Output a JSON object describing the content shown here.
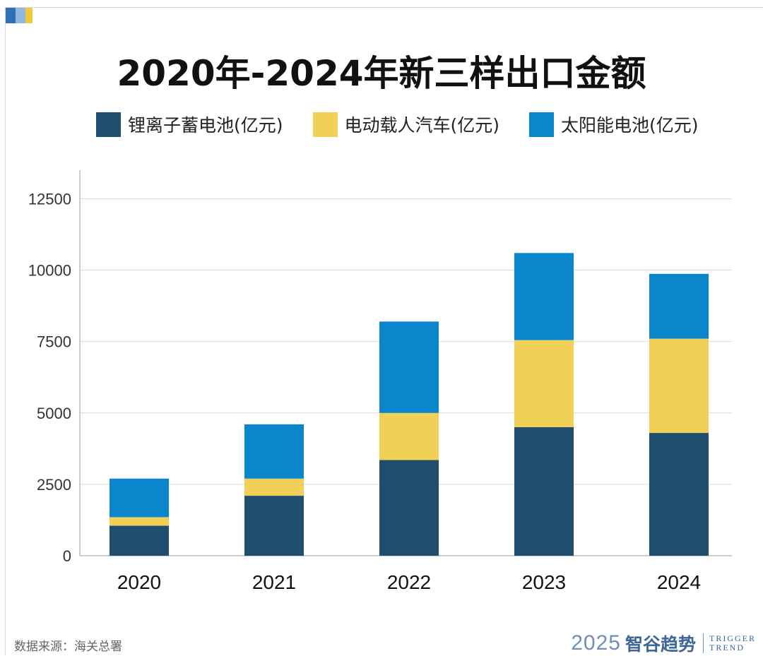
{
  "chart_data": {
    "type": "bar",
    "stacked": true,
    "title": "2020年-2024年新三样出口金额",
    "categories": [
      "2020",
      "2021",
      "2022",
      "2023",
      "2024"
    ],
    "series": [
      {
        "name": "锂离子蓄电池(亿元)",
        "color": "#1f4e6e",
        "values": [
          1050,
          2100,
          3350,
          4500,
          4300
        ]
      },
      {
        "name": "电动载人汽车(亿元)",
        "color": "#f0d056",
        "values": [
          300,
          600,
          1650,
          3050,
          3300
        ]
      },
      {
        "name": "太阳能电池(亿元)",
        "color": "#0b86cc",
        "values": [
          1350,
          1900,
          3200,
          3050,
          2270
        ]
      }
    ],
    "ylim": [
      0,
      13500
    ],
    "yticks": [
      0,
      2500,
      5000,
      7500,
      10000,
      12500
    ],
    "xlabel": "",
    "ylabel": "",
    "grid": true,
    "legend_position": "top"
  },
  "footer": {
    "source": "数据来源：海关总署",
    "brand_year": "2025",
    "brand_name": "智谷趋势",
    "brand_en_1": "TRIGGER",
    "brand_en_2": "TREND"
  },
  "colors": {
    "axis": "#bdbdbd",
    "grid": "#d9d9d9"
  }
}
